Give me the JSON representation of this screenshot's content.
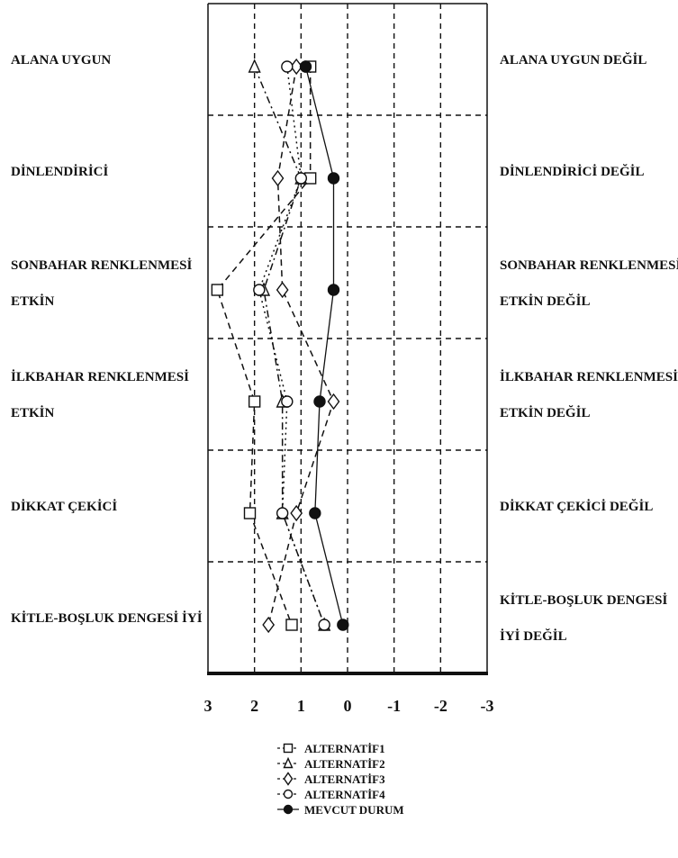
{
  "chart_data": {
    "type": "line",
    "orientation": "profile",
    "title": "",
    "xlabel": "",
    "ylabel": "",
    "xlim": [
      3,
      -3
    ],
    "x_ticks": [
      "3",
      "2",
      "1",
      "0",
      "-1",
      "-2",
      "-3"
    ],
    "grid": true,
    "legend_position": "bottom-center",
    "rows": [
      {
        "left": [
          "ALANA UYGUN"
        ],
        "right": [
          "ALANA UYGUN DEĞİL"
        ]
      },
      {
        "left": [
          "DİNLENDİRİCİ"
        ],
        "right": [
          "DİNLENDİRİCİ DEĞİL"
        ]
      },
      {
        "left": [
          "SONBAHAR RENKLENMESİ",
          "ETKİN"
        ],
        "right": [
          "SONBAHAR RENKLENMESİ",
          "ETKİN DEĞİL"
        ]
      },
      {
        "left": [
          "İLKBAHAR RENKLENMESİ",
          "ETKİN"
        ],
        "right": [
          "İLKBAHAR RENKLENMESİ",
          "ETKİN DEĞİL"
        ]
      },
      {
        "left": [
          "DİKKAT ÇEKİCİ"
        ],
        "right": [
          "DİKKAT ÇEKİCİ DEĞİL"
        ]
      },
      {
        "left": [
          "KİTLE-BOŞLUK DENGESİ İYİ"
        ],
        "right": [
          "KİTLE-BOŞLUK DENGESİ",
          "İYİ DEĞİL"
        ]
      }
    ],
    "series": [
      {
        "name": "ALTERNATİF1",
        "marker": "square",
        "line": "dash",
        "values": [
          0.8,
          0.8,
          2.8,
          2.0,
          2.1,
          1.2
        ]
      },
      {
        "name": "ALTERNATİF2",
        "marker": "triangle",
        "line": "dashdot",
        "values": [
          2.0,
          1.0,
          1.8,
          1.4,
          1.4,
          0.5
        ]
      },
      {
        "name": "ALTERNATİF3",
        "marker": "diamond",
        "line": "dash",
        "values": [
          1.1,
          1.5,
          1.4,
          0.3,
          1.1,
          1.7
        ]
      },
      {
        "name": "ALTERNATİF4",
        "marker": "circle",
        "line": "dot",
        "values": [
          1.3,
          1.0,
          1.9,
          1.3,
          1.4,
          0.5
        ]
      },
      {
        "name": "MEVCUT DURUM",
        "marker": "filled-circle",
        "line": "solid",
        "values": [
          0.9,
          0.3,
          0.3,
          0.6,
          0.7,
          0.1
        ]
      }
    ]
  },
  "legend": {
    "items": [
      {
        "marker": "square",
        "label": "ALTERNATİF1"
      },
      {
        "marker": "triangle",
        "label": "ALTERNATİF2"
      },
      {
        "marker": "diamond",
        "label": "ALTERNATİF3"
      },
      {
        "marker": "circle",
        "label": "ALTERNATİF4"
      },
      {
        "marker": "filled-circle",
        "label": "MEVCUT DURUM"
      }
    ]
  }
}
